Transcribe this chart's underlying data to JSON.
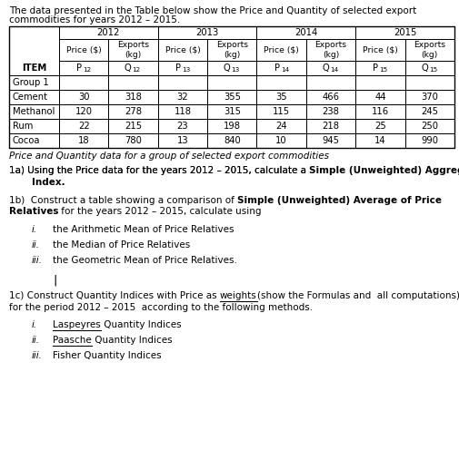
{
  "intro_line1": "The data presented in the Table below show the Price and Quantity of selected export",
  "intro_line2": "commodities for years 2012 – 2015.",
  "years": [
    "2012",
    "2013",
    "2014",
    "2015"
  ],
  "col_hdr1": [
    "Price ($)",
    "Exports\n(kg)",
    "Price ($)",
    "Exports\n(kg)",
    "Price ($)",
    "Exports\n(kg)",
    "Price ($)",
    "Exports\n(kg)"
  ],
  "col_hdr2": [
    "P12",
    "Q12",
    "P13",
    "Q13",
    "P14",
    "Q14",
    "P15",
    "Q15"
  ],
  "items_col": [
    "Group 1",
    "Cement",
    "Methanol",
    "Rum",
    "Cocoa"
  ],
  "data_rows": {
    "Cement": [
      "30",
      "318",
      "32",
      "355",
      "35",
      "466",
      "44",
      "370"
    ],
    "Methanol": [
      "120",
      "278",
      "118",
      "315",
      "115",
      "238",
      "116",
      "245"
    ],
    "Rum": [
      "22",
      "215",
      "23",
      "198",
      "24",
      "218",
      "25",
      "250"
    ],
    "Cocoa": [
      "18",
      "780",
      "13",
      "840",
      "10",
      "945",
      "14",
      "990"
    ]
  },
  "caption": "Price and Quantity data for a group of selected export commodities",
  "bg_color": "#ffffff",
  "font_size": 7.5,
  "bold_font_size": 7.5,
  "table_font_size": 7.2
}
